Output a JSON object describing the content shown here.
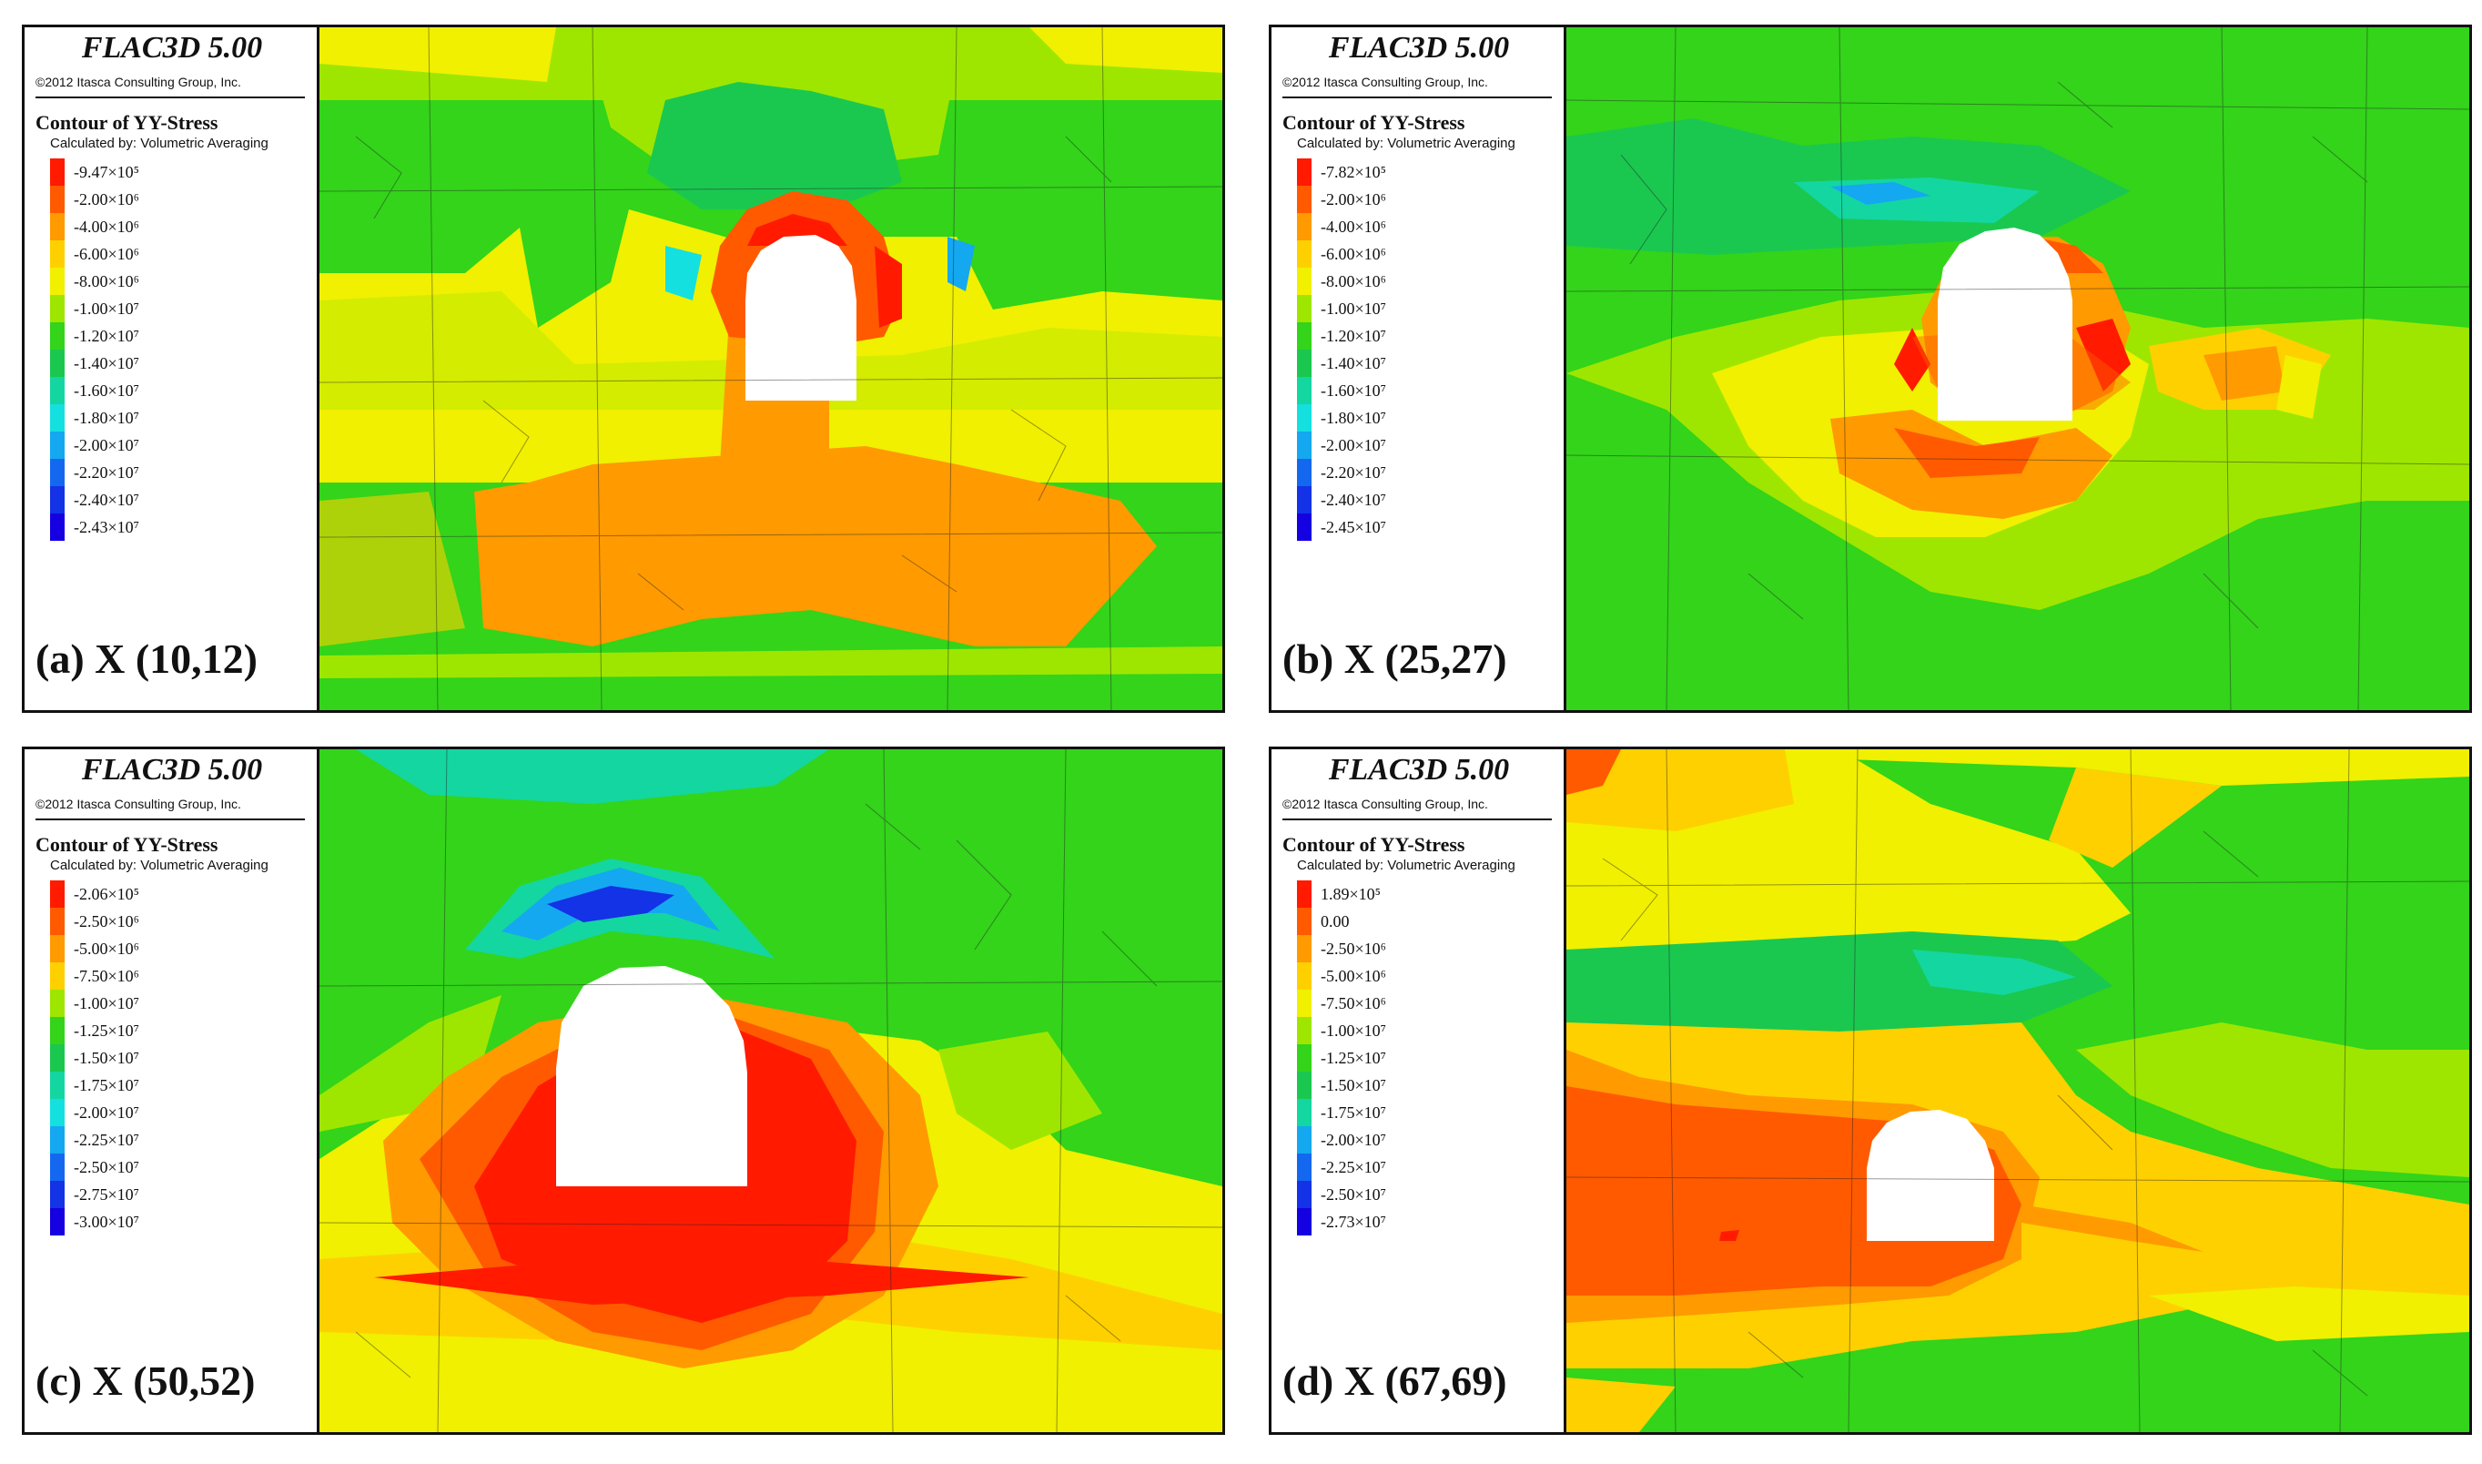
{
  "panels": [
    {
      "software": "FLAC3D 5.00",
      "copyright": "©2012 Itasca Consulting Group, Inc.",
      "contour_title": "Contour of YY-Stress",
      "calculated_by": "Calculated by: Volumetric Averaging",
      "legend": [
        {
          "label": "-9.47×10⁵",
          "color": "#ff1a00"
        },
        {
          "label": "-2.00×10⁶",
          "color": "#ff5a00"
        },
        {
          "label": "-4.00×10⁶",
          "color": "#ff9a00"
        },
        {
          "label": "-6.00×10⁶",
          "color": "#ffd000"
        },
        {
          "label": "-8.00×10⁶",
          "color": "#f0f000"
        },
        {
          "label": "-1.00×10⁷",
          "color": "#9ee600"
        },
        {
          "label": "-1.20×10⁷",
          "color": "#33d41a"
        },
        {
          "label": "-1.40×10⁷",
          "color": "#1ac850"
        },
        {
          "label": "-1.60×10⁷",
          "color": "#14d6a0"
        },
        {
          "label": "-1.80×10⁷",
          "color": "#14e0e0"
        },
        {
          "label": "-2.00×10⁷",
          "color": "#14a8f0"
        },
        {
          "label": "-2.20×10⁷",
          "color": "#1468f0"
        },
        {
          "label": "-2.40×10⁷",
          "color": "#1432e6"
        },
        {
          "label": "-2.43×10⁷",
          "color": "#1400e0"
        }
      ],
      "caption": "(a) X (10,12)"
    },
    {
      "software": "FLAC3D 5.00",
      "copyright": "©2012 Itasca Consulting Group, Inc.",
      "contour_title": "Contour of YY-Stress",
      "calculated_by": "Calculated by: Volumetric Averaging",
      "legend": [
        {
          "label": "-7.82×10⁵",
          "color": "#ff1a00"
        },
        {
          "label": "-2.00×10⁶",
          "color": "#ff5a00"
        },
        {
          "label": "-4.00×10⁶",
          "color": "#ff9a00"
        },
        {
          "label": "-6.00×10⁶",
          "color": "#ffd000"
        },
        {
          "label": "-8.00×10⁶",
          "color": "#f0f000"
        },
        {
          "label": "-1.00×10⁷",
          "color": "#9ee600"
        },
        {
          "label": "-1.20×10⁷",
          "color": "#33d41a"
        },
        {
          "label": "-1.40×10⁷",
          "color": "#1ac850"
        },
        {
          "label": "-1.60×10⁷",
          "color": "#14d6a0"
        },
        {
          "label": "-1.80×10⁷",
          "color": "#14e0e0"
        },
        {
          "label": "-2.00×10⁷",
          "color": "#14a8f0"
        },
        {
          "label": "-2.20×10⁷",
          "color": "#1468f0"
        },
        {
          "label": "-2.40×10⁷",
          "color": "#1432e6"
        },
        {
          "label": "-2.45×10⁷",
          "color": "#1400e0"
        }
      ],
      "caption": "(b) X (25,27)"
    },
    {
      "software": "FLAC3D 5.00",
      "copyright": "©2012 Itasca Consulting Group, Inc.",
      "contour_title": "Contour of YY-Stress",
      "calculated_by": "Calculated by: Volumetric Averaging",
      "legend": [
        {
          "label": "-2.06×10⁵",
          "color": "#ff1a00"
        },
        {
          "label": "-2.50×10⁶",
          "color": "#ff5a00"
        },
        {
          "label": "-5.00×10⁶",
          "color": "#ff9a00"
        },
        {
          "label": "-7.50×10⁶",
          "color": "#ffd000"
        },
        {
          "label": "-1.00×10⁷",
          "color": "#9ee600"
        },
        {
          "label": "-1.25×10⁷",
          "color": "#33d41a"
        },
        {
          "label": "-1.50×10⁷",
          "color": "#1ac850"
        },
        {
          "label": "-1.75×10⁷",
          "color": "#14d6a0"
        },
        {
          "label": "-2.00×10⁷",
          "color": "#14e0e0"
        },
        {
          "label": "-2.25×10⁷",
          "color": "#14a8f0"
        },
        {
          "label": "-2.50×10⁷",
          "color": "#1468f0"
        },
        {
          "label": "-2.75×10⁷",
          "color": "#1432e6"
        },
        {
          "label": "-3.00×10⁷",
          "color": "#1400e0"
        }
      ],
      "caption": "(c) X (50,52)"
    },
    {
      "software": "FLAC3D 5.00",
      "copyright": "©2012 Itasca Consulting Group, Inc.",
      "contour_title": "Contour of YY-Stress",
      "calculated_by": "Calculated by: Volumetric Averaging",
      "legend": [
        {
          "label": "1.89×10⁵",
          "color": "#ff1a00"
        },
        {
          "label": "0.00",
          "color": "#ff5a00"
        },
        {
          "label": "-2.50×10⁶",
          "color": "#ff9a00"
        },
        {
          "label": "-5.00×10⁶",
          "color": "#ffd000"
        },
        {
          "label": "-7.50×10⁶",
          "color": "#f0f000"
        },
        {
          "label": "-1.00×10⁷",
          "color": "#9ee600"
        },
        {
          "label": "-1.25×10⁷",
          "color": "#33d41a"
        },
        {
          "label": "-1.50×10⁷",
          "color": "#1ac850"
        },
        {
          "label": "-1.75×10⁷",
          "color": "#14d6a0"
        },
        {
          "label": "-2.00×10⁷",
          "color": "#14a8f0"
        },
        {
          "label": "-2.25×10⁷",
          "color": "#1468f0"
        },
        {
          "label": "-2.50×10⁷",
          "color": "#1432e6"
        },
        {
          "label": "-2.73×10⁷",
          "color": "#1400e0"
        }
      ],
      "caption": "(d) X (67,69)"
    }
  ]
}
